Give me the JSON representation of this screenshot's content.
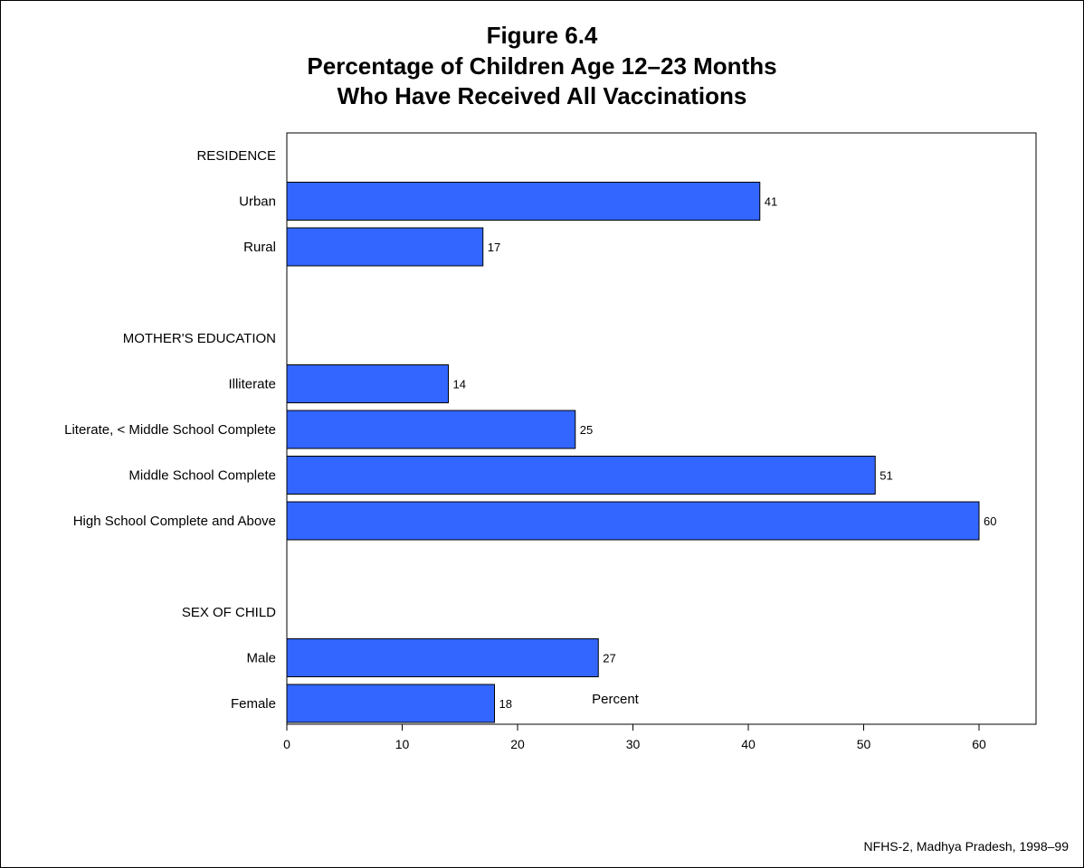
{
  "chart_data": {
    "type": "bar",
    "orientation": "horizontal",
    "title": [
      "Figure 6.4",
      "Percentage of Children Age 12–23 Months",
      "Who Have Received All Vaccinations"
    ],
    "xlabel": "Percent",
    "ylabel": "",
    "xlim": [
      0,
      65
    ],
    "xticks": [
      0,
      10,
      20,
      30,
      40,
      50,
      60
    ],
    "grid": false,
    "legend": "none",
    "bar_color": "#3366ff",
    "groups": [
      {
        "name": "RESIDENCE",
        "categories": [
          "Urban",
          "Rural"
        ],
        "values": [
          41,
          17
        ]
      },
      {
        "name": "MOTHER'S EDUCATION",
        "categories": [
          "Illiterate",
          "Literate, < Middle School Complete",
          "Middle School Complete",
          "High School Complete and Above"
        ],
        "values": [
          14,
          25,
          51,
          60
        ]
      },
      {
        "name": "SEX OF CHILD",
        "categories": [
          "Male",
          "Female"
        ],
        "values": [
          27,
          18
        ]
      }
    ],
    "source": "NFHS-2, Madhya Pradesh, 1998–99"
  }
}
